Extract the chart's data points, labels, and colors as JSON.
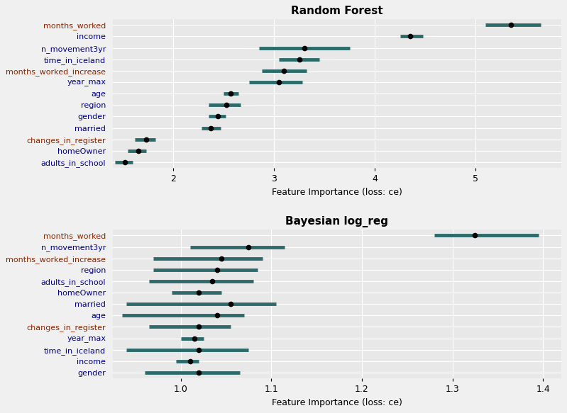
{
  "rf_title": "Random Forest",
  "bayes_title": "Bayesian log_reg",
  "xlabel": "Feature Importance (loss: ce)",
  "bar_color": "#2d6b6b",
  "bg_color": "#e8e8e8",
  "grid_color": "#ffffff",
  "rf_features": [
    "months_worked",
    "income",
    "n_movement3yr",
    "time_in_iceland",
    "months_worked_increase",
    "year_max",
    "age",
    "region",
    "gender",
    "married",
    "changes_in_register",
    "homeOwner",
    "adults_in_school"
  ],
  "rf_center": [
    5.35,
    4.35,
    3.3,
    3.25,
    3.1,
    3.05,
    2.57,
    2.53,
    2.44,
    2.37,
    1.73,
    1.65,
    1.52
  ],
  "rf_lo": [
    5.1,
    4.25,
    2.85,
    3.05,
    2.88,
    2.75,
    2.5,
    2.35,
    2.35,
    2.28,
    1.62,
    1.55,
    1.42
  ],
  "rf_hi": [
    5.65,
    4.48,
    3.75,
    3.45,
    3.32,
    3.28,
    2.65,
    2.67,
    2.52,
    2.47,
    1.82,
    1.73,
    1.6
  ],
  "rf_xlim": [
    1.4,
    5.85
  ],
  "rf_xticks": [
    2,
    3,
    4,
    5
  ],
  "rf_label_colors": [
    "#8b2500",
    "#00008b",
    "#00008b",
    "#00008b",
    "#8b2500",
    "#00008b",
    "#00008b",
    "#00008b",
    "#00008b",
    "#00008b",
    "#8b2500",
    "#00008b",
    "#00008b"
  ],
  "bayes_features": [
    "months_worked",
    "n_movement3yr",
    "months_worked_increase",
    "region",
    "adults_in_school",
    "homeOwner",
    "married",
    "age",
    "changes_in_register",
    "year_max",
    "time_in_iceland",
    "income",
    "gender"
  ],
  "bayes_center": [
    1.325,
    1.075,
    1.045,
    1.04,
    1.035,
    1.02,
    1.055,
    1.04,
    1.02,
    1.015,
    1.02,
    1.01,
    1.02
  ],
  "bayes_lo": [
    1.28,
    1.01,
    0.97,
    0.97,
    0.965,
    0.99,
    0.94,
    0.935,
    0.965,
    1.0,
    0.94,
    0.995,
    0.96
  ],
  "bayes_hi": [
    1.395,
    1.115,
    1.09,
    1.085,
    1.08,
    1.045,
    1.105,
    1.07,
    1.055,
    1.025,
    1.075,
    1.02,
    1.065
  ],
  "bayes_xlim": [
    0.925,
    1.42
  ],
  "bayes_xticks": [
    1.0,
    1.1,
    1.2,
    1.3,
    1.4
  ],
  "bayes_label_colors": [
    "#8b2500",
    "#00008b",
    "#8b2500",
    "#00008b",
    "#00008b",
    "#00008b",
    "#00008b",
    "#00008b",
    "#8b2500",
    "#00008b",
    "#00008b",
    "#00008b",
    "#00008b"
  ]
}
